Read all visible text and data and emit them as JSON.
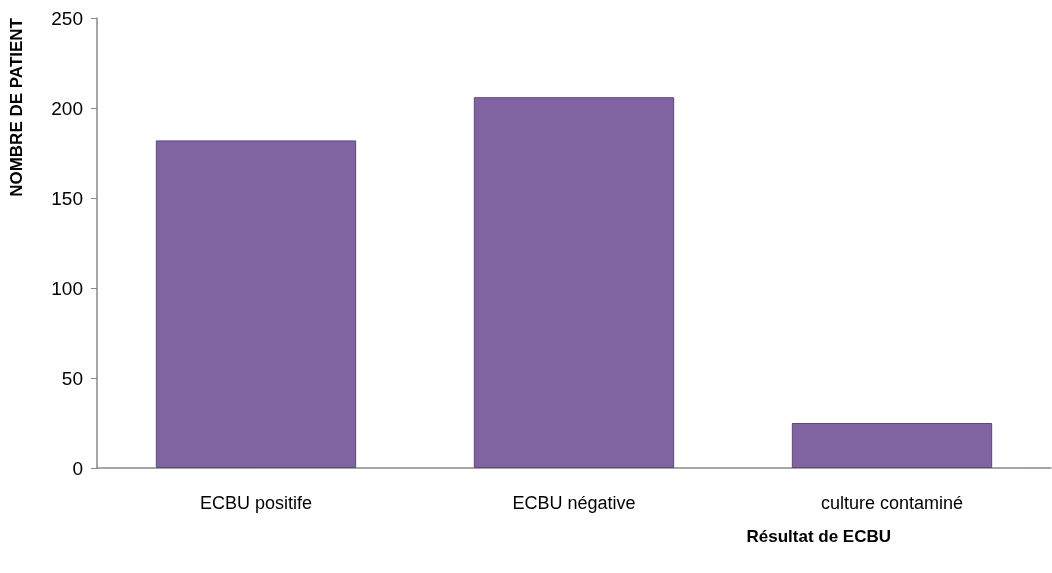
{
  "chart_data": {
    "type": "bar",
    "xlabel": "Résultat de ECBU",
    "ylabel": "NOMBRE DE PATIENT",
    "categories": [
      "ECBU positife",
      "ECBU négative",
      "culture contaminé"
    ],
    "values": [
      182,
      206,
      25
    ],
    "color": "#8064a2",
    "ylim": [
      0,
      250
    ],
    "yticks": [
      0,
      50,
      100,
      150,
      200,
      250
    ],
    "grid": false
  }
}
